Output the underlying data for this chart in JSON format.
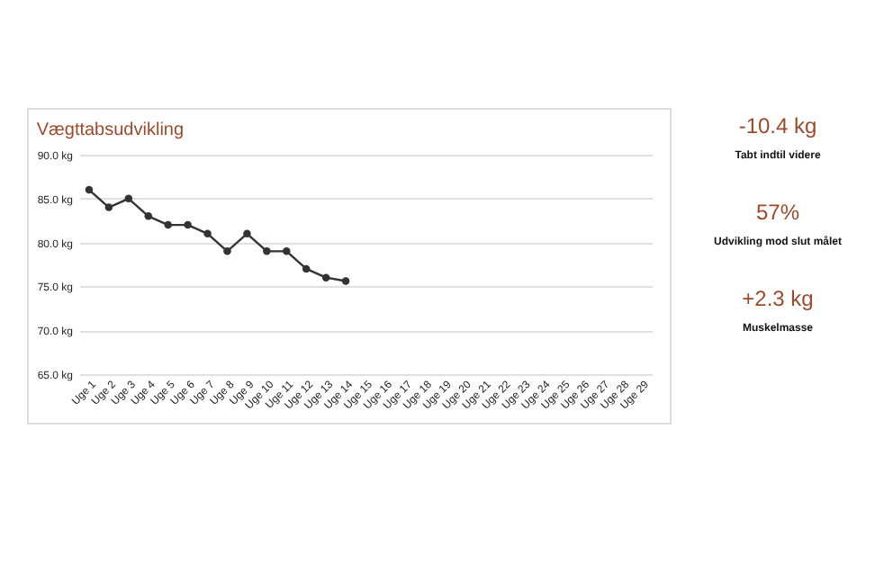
{
  "chart_data": [
    {
      "type": "line",
      "title": "Vægttabsudvikling",
      "categories": [
        "Uge 1",
        "Uge 2",
        "Uge 3",
        "Uge 4",
        "Uge 5",
        "Uge 6",
        "Uge 7",
        "Uge 8",
        "Uge 9",
        "Uge 10",
        "Uge 11",
        "Uge 12",
        "Uge 13",
        "Uge 14",
        "Uge 15",
        "Uge 16",
        "Uge 17",
        "Uge 18",
        "Uge 19",
        "Uge 20",
        "Uge 21",
        "Uge 22",
        "Uge 23",
        "Uge 24",
        "Uge 25",
        "Uge 26",
        "Uge 27",
        "Uge 28",
        "Uge 29"
      ],
      "series": [
        {
          "color": "#333333",
          "values": [
            86,
            84,
            85,
            83,
            82,
            82,
            81,
            79,
            81,
            79,
            79,
            77,
            76,
            75.6,
            null,
            null,
            null,
            null,
            null,
            null,
            null,
            null,
            null,
            null,
            null,
            null,
            null,
            null,
            null
          ]
        }
      ],
      "ylim": [
        65,
        90
      ],
      "yticks": [
        {
          "value": 65,
          "label": "65.0 kg"
        },
        {
          "value": 70,
          "label": "70.0 kg"
        },
        {
          "value": 75,
          "label": "75.0 kg"
        },
        {
          "value": 80,
          "label": "80.0 kg"
        },
        {
          "value": 85,
          "label": "85.0 kg"
        },
        {
          "value": 90,
          "label": "90.0 kg"
        }
      ],
      "grid": "y",
      "marker": "circle",
      "line_style": "solid"
    },
    {
      "type": "other",
      "annotations": [
        "-10.4 kg",
        "Tabt indtil videre",
        "57%",
        "Udvikling mod slut målet",
        "+2.3 kg",
        "Muskelmasse"
      ]
    }
  ]
}
